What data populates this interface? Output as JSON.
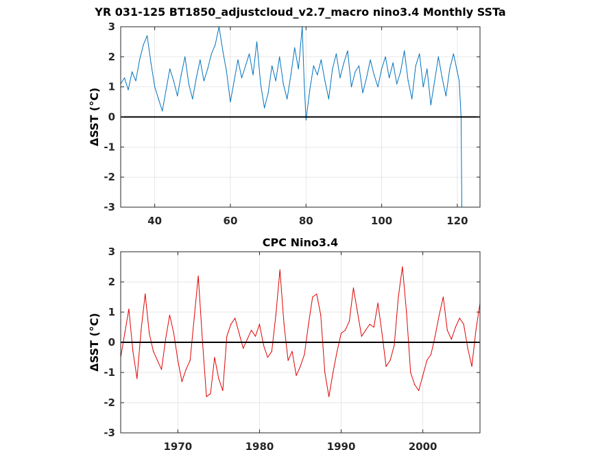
{
  "chart_data": [
    {
      "type": "line",
      "title": "YR 031-125 BT1850_adjustcloud_v2.7_macro nino3.4 Monthly SSTa",
      "ylabel": "ΔSST (°C)",
      "xlabel": "",
      "xlim": [
        31,
        126
      ],
      "ylim": [
        -3,
        3
      ],
      "xticks": [
        40,
        60,
        80,
        100,
        120
      ],
      "yticks": [
        -3,
        -2,
        -1,
        0,
        1,
        2,
        3
      ],
      "grid": true,
      "zero_line": true,
      "color": "#0072bd",
      "series": [
        {
          "x": [
            31.0,
            32.0,
            33.0,
            34.0,
            35.0,
            36.0,
            37.0,
            38.0,
            39.0,
            40.0,
            41.0,
            42.0,
            43.0,
            44.0,
            45.0,
            46.0,
            47.0,
            48.0,
            49.0,
            50.0,
            51.0,
            52.0,
            53.0,
            54.0,
            55.0,
            56.0,
            57.0,
            58.0,
            59.0,
            60.0,
            61.0,
            62.0,
            63.0,
            64.0,
            65.0,
            66.0,
            67.0,
            68.0,
            69.0,
            70.0,
            71.0,
            72.0,
            73.0,
            74.0,
            75.0,
            76.0,
            77.0,
            78.0,
            79.0,
            79.5,
            80.0,
            81.0,
            82.0,
            83.0,
            84.0,
            85.0,
            86.0,
            87.0,
            88.0,
            89.0,
            90.0,
            91.0,
            92.0,
            93.0,
            94.0,
            95.0,
            96.0,
            97.0,
            98.0,
            99.0,
            100.0,
            101.0,
            102.0,
            103.0,
            104.0,
            105.0,
            106.0,
            107.0,
            108.0,
            109.0,
            110.0,
            111.0,
            112.0,
            113.0,
            114.0,
            115.0,
            116.0,
            117.0,
            118.0,
            119.0,
            120.0,
            120.5,
            121.0,
            121.2
          ],
          "y": [
            1.1,
            1.3,
            0.9,
            1.5,
            1.2,
            1.9,
            2.4,
            2.7,
            1.8,
            1.0,
            0.6,
            0.2,
            0.9,
            1.6,
            1.2,
            0.7,
            1.4,
            2.0,
            1.1,
            0.6,
            1.3,
            1.9,
            1.2,
            1.6,
            2.1,
            2.4,
            3.0,
            2.2,
            1.5,
            0.5,
            1.2,
            1.9,
            1.3,
            1.7,
            2.1,
            1.4,
            2.5,
            1.1,
            0.3,
            0.8,
            1.7,
            1.2,
            2.0,
            1.1,
            0.6,
            1.4,
            2.3,
            1.6,
            3.0,
            1.2,
            -0.1,
            0.9,
            1.7,
            1.4,
            1.9,
            1.2,
            0.6,
            1.6,
            2.1,
            1.3,
            1.8,
            2.2,
            1.0,
            1.5,
            1.7,
            0.8,
            1.3,
            1.9,
            1.4,
            1.0,
            1.6,
            2.0,
            1.3,
            1.8,
            1.1,
            1.5,
            2.2,
            1.2,
            0.6,
            1.7,
            2.1,
            1.0,
            1.6,
            0.4,
            1.2,
            2.0,
            1.3,
            0.7,
            1.6,
            2.1,
            1.5,
            1.2,
            0.0,
            -3.0
          ]
        }
      ]
    },
    {
      "type": "line",
      "title": "CPC Nino3.4",
      "ylabel": "ΔSST (°C)",
      "xlabel": "",
      "xlim": [
        1963,
        2007
      ],
      "ylim": [
        -3,
        3
      ],
      "xticks": [
        1970,
        1980,
        1990,
        2000
      ],
      "yticks": [
        -3,
        -2,
        -1,
        0,
        1,
        2,
        3
      ],
      "grid": true,
      "zero_line": true,
      "color": "#e00000",
      "series": [
        {
          "x": [
            1963.0,
            1963.5,
            1964.0,
            1964.5,
            1965.0,
            1965.5,
            1966.0,
            1966.5,
            1967.0,
            1967.5,
            1968.0,
            1968.5,
            1969.0,
            1969.5,
            1970.0,
            1970.5,
            1971.0,
            1971.5,
            1972.0,
            1972.5,
            1973.0,
            1973.5,
            1974.0,
            1974.5,
            1975.0,
            1975.5,
            1976.0,
            1976.5,
            1977.0,
            1977.5,
            1978.0,
            1978.5,
            1979.0,
            1979.5,
            1980.0,
            1980.5,
            1981.0,
            1981.5,
            1982.0,
            1982.5,
            1983.0,
            1983.5,
            1984.0,
            1984.5,
            1985.0,
            1985.5,
            1986.0,
            1986.5,
            1987.0,
            1987.5,
            1988.0,
            1988.5,
            1989.0,
            1989.5,
            1990.0,
            1990.5,
            1991.0,
            1991.5,
            1992.0,
            1992.5,
            1993.0,
            1993.5,
            1994.0,
            1994.5,
            1995.0,
            1995.5,
            1996.0,
            1996.5,
            1997.0,
            1997.5,
            1998.0,
            1998.5,
            1999.0,
            1999.5,
            2000.0,
            2000.5,
            2001.0,
            2001.5,
            2002.0,
            2002.5,
            2003.0,
            2003.5,
            2004.0,
            2004.5,
            2005.0,
            2005.5,
            2006.0,
            2006.5,
            2007.0
          ],
          "y": [
            -0.5,
            0.3,
            1.1,
            -0.3,
            -1.2,
            0.4,
            1.6,
            0.3,
            -0.3,
            -0.6,
            -0.9,
            0.1,
            0.9,
            0.3,
            -0.6,
            -1.3,
            -0.9,
            -0.6,
            0.8,
            2.2,
            0.1,
            -1.8,
            -1.7,
            -0.5,
            -1.2,
            -1.6,
            0.2,
            0.6,
            0.8,
            0.3,
            -0.2,
            0.1,
            0.4,
            0.2,
            0.6,
            -0.1,
            -0.5,
            -0.3,
            0.9,
            2.4,
            0.6,
            -0.6,
            -0.3,
            -1.1,
            -0.8,
            -0.4,
            0.6,
            1.5,
            1.6,
            0.9,
            -1.0,
            -1.8,
            -1.0,
            -0.3,
            0.3,
            0.4,
            0.7,
            1.8,
            1.0,
            0.2,
            0.4,
            0.6,
            0.5,
            1.3,
            0.3,
            -0.8,
            -0.6,
            -0.1,
            1.5,
            2.5,
            1.0,
            -1.0,
            -1.4,
            -1.6,
            -1.1,
            -0.6,
            -0.4,
            0.2,
            0.9,
            1.5,
            0.4,
            0.1,
            0.5,
            0.8,
            0.6,
            -0.2,
            -0.8,
            0.4,
            1.3
          ]
        }
      ]
    }
  ]
}
